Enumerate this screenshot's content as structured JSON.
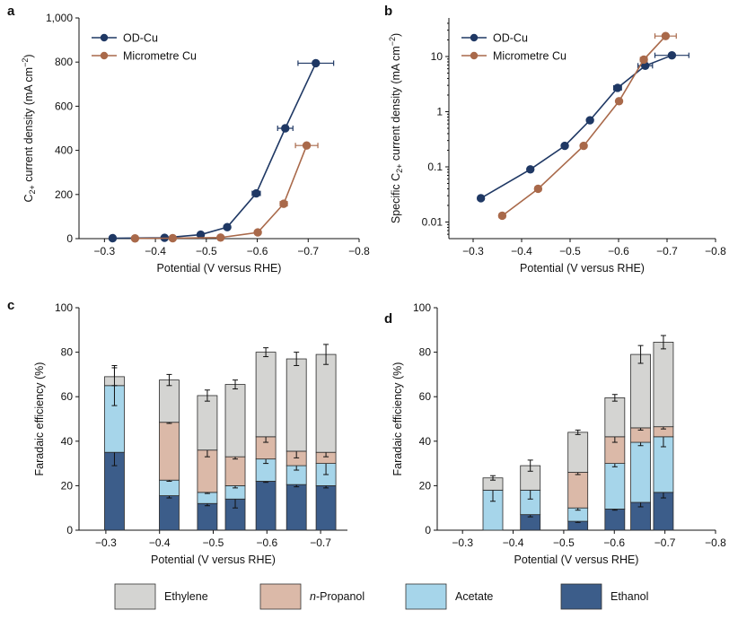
{
  "colors": {
    "od_cu": "#1f3864",
    "micro_cu": "#a9694a",
    "ethylene": "#d4d4d2",
    "propanol": "#dbb9a8",
    "acetate": "#a6d5ea",
    "ethanol": "#3c5d8a"
  },
  "legend": {
    "items": [
      {
        "key": "ethylene",
        "label": "Ethylene",
        "prefix": "",
        "color": "#d4d4d2"
      },
      {
        "key": "propanol",
        "label": "-Propanol",
        "prefix": "n",
        "color": "#dbb9a8"
      },
      {
        "key": "acetate",
        "label": "Acetate",
        "prefix": "",
        "color": "#a6d5ea"
      },
      {
        "key": "ethanol",
        "label": "Ethanol",
        "prefix": "",
        "color": "#3c5d8a"
      }
    ]
  },
  "chart_data": [
    {
      "panel": "a",
      "type": "line",
      "xlabel": "Potential (V versus RHE)",
      "ylabel_parts": [
        "C",
        "2+",
        " current density (mA cm",
        "−2",
        ")"
      ],
      "xlim": [
        -0.25,
        -0.8
      ],
      "ylim": [
        0,
        1000
      ],
      "xticks": [
        -0.3,
        -0.4,
        -0.5,
        -0.6,
        -0.7,
        -0.8
      ],
      "xtick_labels": [
        "−0.3",
        "−0.4",
        "−0.5",
        "−0.6",
        "−0.7",
        "−0.8"
      ],
      "yticks": [
        0,
        200,
        400,
        600,
        800,
        1000
      ],
      "ytick_labels": [
        "0",
        "200",
        "400",
        "600",
        "800",
        "1,000"
      ],
      "legend_position": "top-left",
      "series": [
        {
          "name": "OD-Cu",
          "color": "#1f3864",
          "x": [
            -0.316,
            -0.418,
            -0.489,
            -0.541,
            -0.598,
            -0.655,
            -0.715
          ],
          "y": [
            2,
            4,
            18,
            52,
            205,
            500,
            795
          ],
          "xerr": [
            0.004,
            0.004,
            0.004,
            0.004,
            0.008,
            0.015,
            0.035
          ]
        },
        {
          "name": "Micrometre Cu",
          "color": "#a9694a",
          "x": [
            -0.36,
            -0.434,
            -0.528,
            -0.601,
            -0.652,
            -0.697
          ],
          "y": [
            1,
            2,
            5,
            28,
            158,
            422
          ],
          "xerr": [
            0.004,
            0.004,
            0.004,
            0.004,
            0.007,
            0.022
          ]
        }
      ]
    },
    {
      "panel": "b",
      "type": "line",
      "yscale": "log",
      "xlabel": "Potential (V versus RHE)",
      "ylabel_parts": [
        "Specific C",
        "2+",
        " current density (mA cm",
        "−2",
        ")"
      ],
      "xlim": [
        -0.25,
        -0.8
      ],
      "ylim": [
        0.005,
        50
      ],
      "xticks": [
        -0.3,
        -0.4,
        -0.5,
        -0.6,
        -0.7,
        -0.8
      ],
      "xtick_labels": [
        "−0.3",
        "−0.4",
        "−0.5",
        "−0.6",
        "−0.7",
        "−0.8"
      ],
      "yticks": [
        0.01,
        0.1,
        1,
        10
      ],
      "ytick_labels": [
        "0.01",
        "0.1",
        "1",
        "10"
      ],
      "legend_position": "top-left",
      "series": [
        {
          "name": "OD-Cu",
          "color": "#1f3864",
          "x": [
            -0.316,
            -0.418,
            -0.489,
            -0.541,
            -0.598,
            -0.655,
            -0.71
          ],
          "y": [
            0.027,
            0.09,
            0.24,
            0.7,
            2.7,
            6.8,
            10.5
          ],
          "xerr": [
            0.004,
            0.004,
            0.004,
            0.004,
            0.008,
            0.015,
            0.035
          ]
        },
        {
          "name": "Micrometre Cu",
          "color": "#a9694a",
          "x": [
            -0.36,
            -0.434,
            -0.528,
            -0.601,
            -0.652,
            -0.697
          ],
          "y": [
            0.013,
            0.04,
            0.24,
            1.55,
            8.8,
            23.5
          ],
          "xerr": [
            0.006,
            0.006,
            0.004,
            0.004,
            0.007,
            0.022
          ]
        }
      ]
    },
    {
      "panel": "c",
      "type": "bar",
      "stacked": true,
      "xlabel": "Potential (V versus RHE)",
      "ylabel": "Faradaic efficiency (%)",
      "xlim": [
        -0.25,
        -0.75
      ],
      "ylim": [
        0,
        100
      ],
      "xticks": [
        -0.3,
        -0.4,
        -0.5,
        -0.6,
        -0.7
      ],
      "xtick_labels": [
        "−0.3",
        "−0.4",
        "−0.5",
        "−0.6",
        "−0.7"
      ],
      "yticks": [
        0,
        20,
        40,
        60,
        80,
        100
      ],
      "ytick_labels": [
        "0",
        "20",
        "40",
        "60",
        "80",
        "100"
      ],
      "x": [
        -0.316,
        -0.418,
        -0.489,
        -0.541,
        -0.598,
        -0.655,
        -0.71
      ],
      "series": [
        {
          "name": "Ethanol",
          "values": [
            35,
            15.5,
            12,
            14,
            22,
            20.5,
            20
          ],
          "err": [
            6,
            1,
            1,
            4,
            0.5,
            1,
            1
          ]
        },
        {
          "name": "Acetate",
          "values": [
            30,
            7,
            5,
            6,
            10,
            8.5,
            10
          ],
          "err": [
            9,
            0.5,
            0.5,
            1,
            2,
            2,
            5
          ]
        },
        {
          "name": "n-Propanol",
          "values": [
            0,
            26,
            19,
            13,
            10,
            6.5,
            5
          ],
          "err": [
            0,
            0.5,
            3,
            1,
            2.5,
            3,
            2
          ]
        },
        {
          "name": "Ethylene",
          "values": [
            4,
            19,
            24.5,
            32.5,
            38,
            41.5,
            44
          ],
          "err": [
            4,
            2.5,
            2.5,
            2,
            2,
            3,
            4.5
          ]
        }
      ]
    },
    {
      "panel": "d",
      "type": "bar",
      "stacked": true,
      "xlabel": "Potential (V versus RHE)",
      "ylabel": "Faradaic efficiency (%)",
      "xlim": [
        -0.25,
        -0.8
      ],
      "ylim": [
        0,
        100
      ],
      "xticks": [
        -0.3,
        -0.4,
        -0.5,
        -0.6,
        -0.7,
        -0.8
      ],
      "xtick_labels": [
        "−0.3",
        "−0.4",
        "−0.5",
        "−0.6",
        "−0.7",
        "−0.8"
      ],
      "yticks": [
        0,
        20,
        40,
        60,
        80,
        100
      ],
      "ytick_labels": [
        "0",
        "20",
        "40",
        "60",
        "80",
        "100"
      ],
      "x": [
        -0.36,
        -0.434,
        -0.528,
        -0.601,
        -0.652,
        -0.697
      ],
      "series": [
        {
          "name": "Ethanol",
          "values": [
            0,
            7,
            4,
            9.5,
            12.5,
            17
          ],
          "err": [
            0,
            1,
            0.5,
            0.5,
            2,
            2.5
          ]
        },
        {
          "name": "Acetate",
          "values": [
            18,
            11,
            6,
            20.5,
            27,
            25
          ],
          "err": [
            5,
            4,
            1,
            1.5,
            1.5,
            4.5
          ]
        },
        {
          "name": "n-Propanol",
          "values": [
            0,
            0,
            16,
            12,
            6.5,
            4.5
          ],
          "err": [
            0,
            0,
            1,
            2.5,
            1,
            1
          ]
        },
        {
          "name": "Ethylene",
          "values": [
            5.5,
            11,
            18,
            17.5,
            33,
            38
          ],
          "err": [
            1,
            2.5,
            1,
            1.5,
            4,
            3
          ]
        }
      ]
    }
  ]
}
